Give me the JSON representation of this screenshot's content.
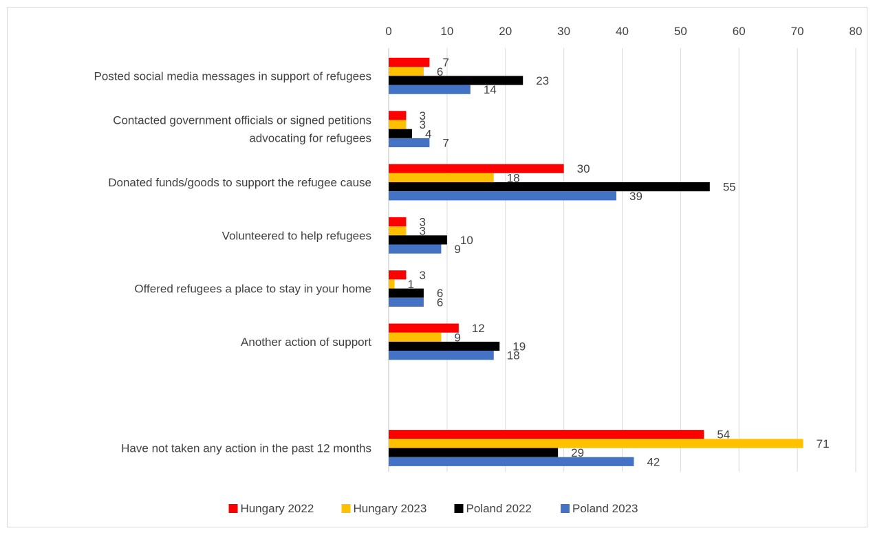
{
  "chart_data": {
    "type": "bar",
    "orientation": "horizontal",
    "categories": [
      "Posted social media messages in support of refugees",
      [
        "Contacted government officials or signed petitions",
        "advocating for refugees"
      ],
      "Donated funds/goods to support the refugee cause",
      "Volunteered to help refugees",
      "Offered refugees a place to stay in your home",
      "Another action of support",
      "",
      "Have not taken any action in the past 12 months"
    ],
    "series": [
      {
        "name": "Hungary 2022",
        "color": "#ff0000",
        "values": [
          7,
          3,
          30,
          3,
          3,
          12,
          null,
          54
        ]
      },
      {
        "name": "Hungary 2023",
        "color": "#ffc000",
        "values": [
          6,
          3,
          18,
          3,
          1,
          9,
          null,
          71
        ]
      },
      {
        "name": "Poland 2022",
        "color": "#000000",
        "values": [
          23,
          4,
          55,
          10,
          6,
          19,
          null,
          29
        ]
      },
      {
        "name": "Poland 2023",
        "color": "#4472c4",
        "values": [
          14,
          7,
          39,
          9,
          6,
          18,
          null,
          42
        ]
      }
    ],
    "xlim": [
      0,
      80
    ],
    "xticks": [
      0,
      10,
      20,
      30,
      40,
      50,
      60,
      70,
      80
    ],
    "x_axis_position": "top",
    "grid": true,
    "legend_position": "bottom",
    "data_labels": true
  }
}
